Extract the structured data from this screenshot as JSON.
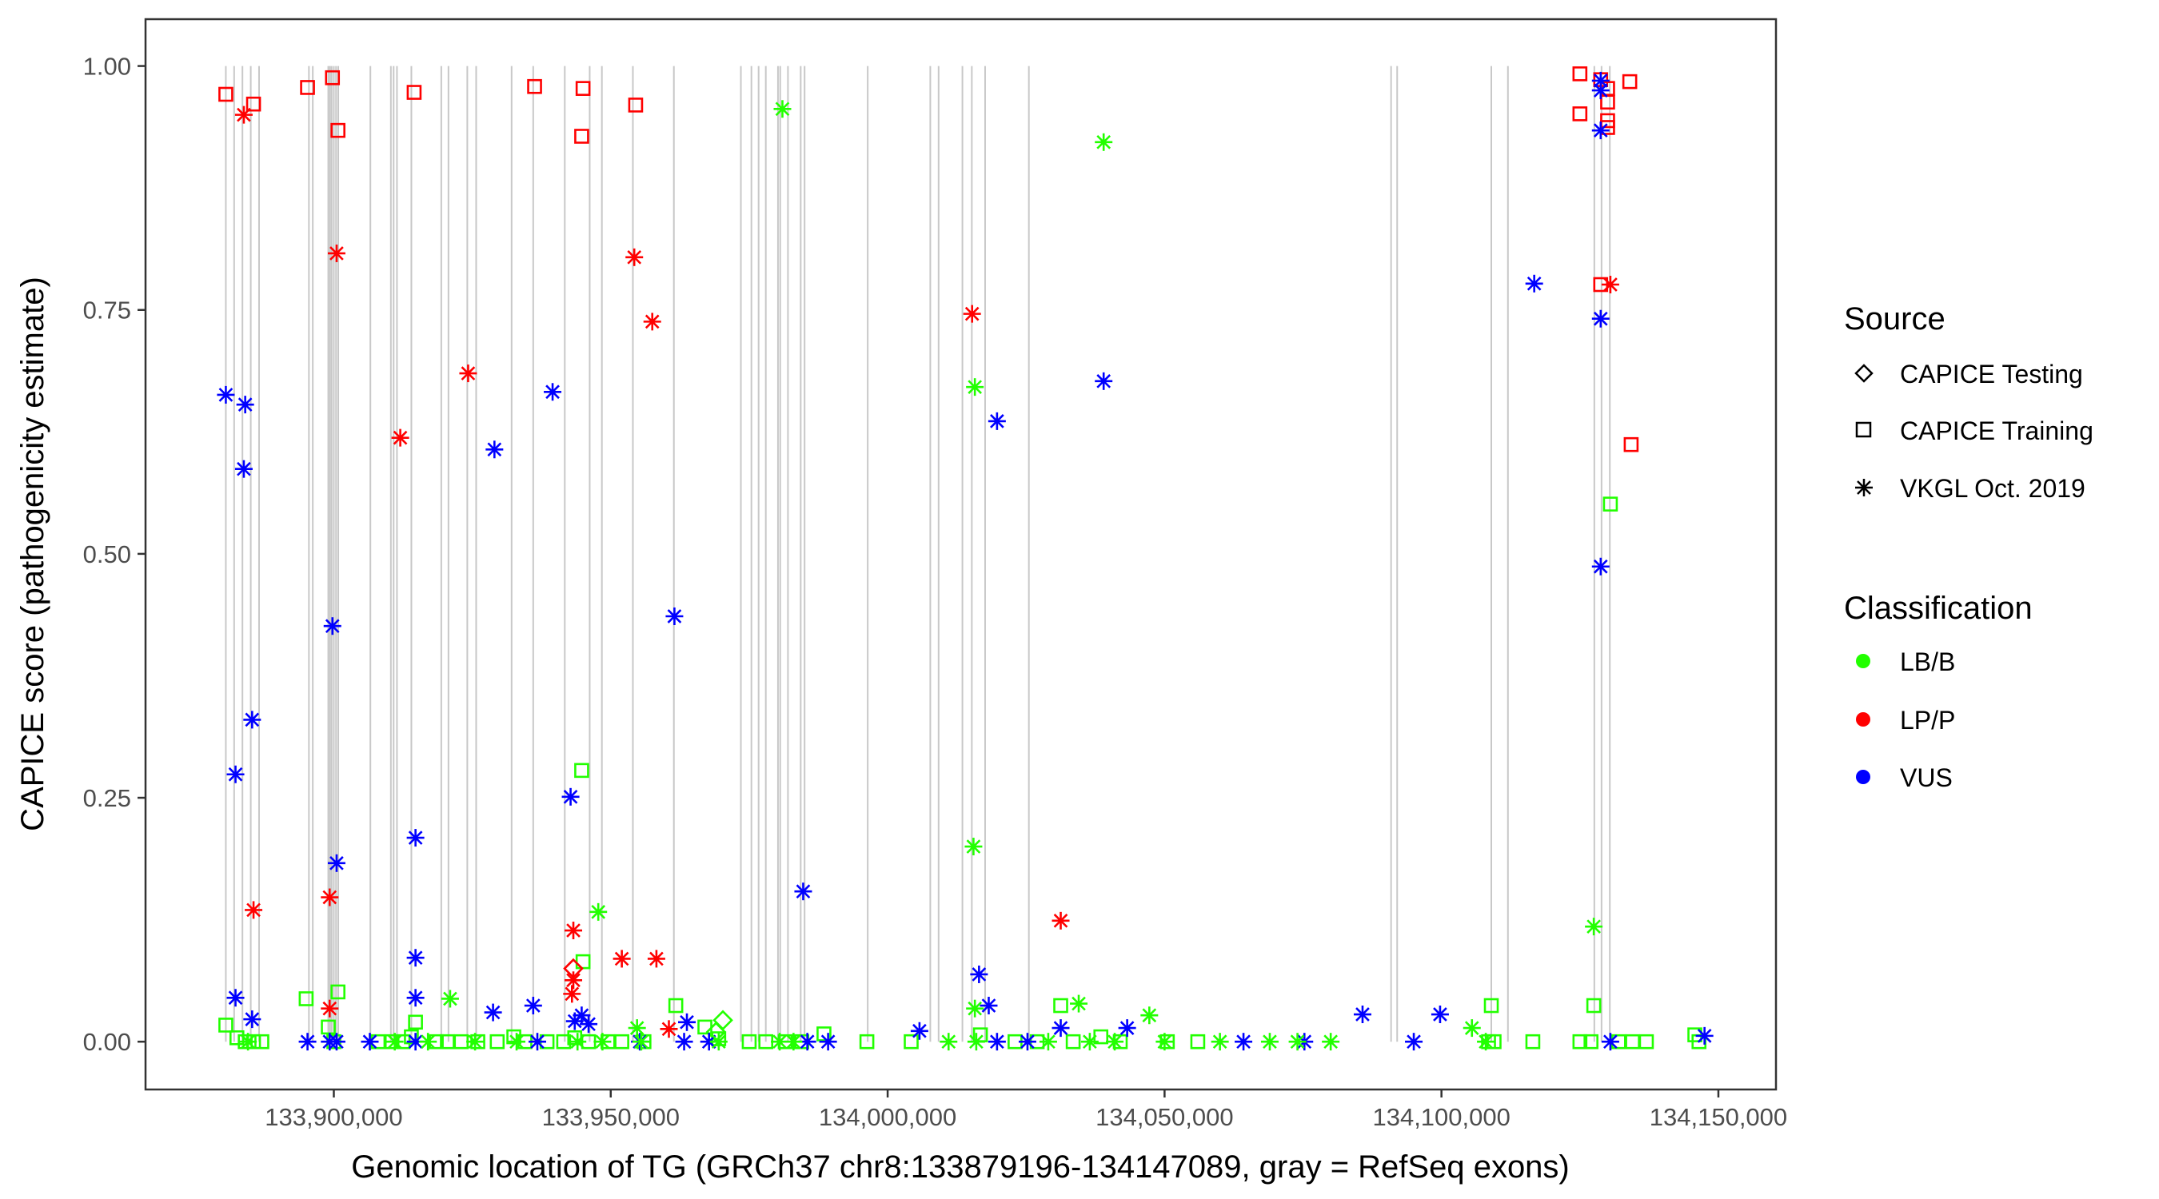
{
  "chart_data": {
    "type": "scatter",
    "title": "",
    "xlabel": "Genomic location of TG (GRCh37 chr8:133879196-134147089, gray = RefSeq exons)",
    "ylabel": "CAPICE score (pathogenicity estimate)",
    "xlim": [
      133866000,
      134160400
    ],
    "ylim": [
      -0.049,
      1.048
    ],
    "x_ticks": [
      133900000,
      133950000,
      134000000,
      134050000,
      134100000,
      134150000
    ],
    "x_tick_labels": [
      "133,900,000",
      "133,950,000",
      "134,000,000",
      "134,050,000",
      "134,100,000",
      "134,150,000"
    ],
    "y_ticks": [
      0,
      0.25,
      0.5,
      0.75,
      1.0
    ],
    "y_tick_labels": [
      "0.00",
      "0.25",
      "0.50",
      "0.75",
      "1.00"
    ],
    "grid": false,
    "exon_line_range": [
      0,
      1
    ],
    "exons": [
      133880500,
      133882000,
      133883500,
      133885000,
      133886500,
      133895500,
      133896200,
      133899000,
      133899300,
      133899600,
      133900000,
      133900400,
      133900800,
      133906600,
      133910300,
      133910800,
      133911400,
      133914000,
      133919400,
      133920700,
      133924100,
      133925700,
      133932100,
      133936000,
      133941700,
      133946200,
      133948400,
      133954000,
      133961400,
      133973500,
      133975400,
      133976700,
      133978000,
      133980200,
      133980600,
      133982000,
      133984300,
      133985000,
      133996400,
      134007700,
      134009200,
      134013500,
      134015200,
      134017600,
      134025500,
      134090900,
      134092000,
      134109000,
      134112000,
      134127600,
      134128900,
      134130400
    ],
    "legend": {
      "placement": "right",
      "source": {
        "title": "Source",
        "items": [
          {
            "label": "CAPICE Testing",
            "shape": "diamond"
          },
          {
            "label": "CAPICE Training",
            "shape": "square"
          },
          {
            "label": "VKGL Oct. 2019",
            "shape": "asterisk"
          }
        ]
      },
      "classification": {
        "title": "Classification",
        "items": [
          {
            "label": "LB/B",
            "color": "#22ff00"
          },
          {
            "label": "LP/P",
            "color": "#ff0000"
          },
          {
            "label": "VUS",
            "color": "#0000ff"
          }
        ]
      }
    },
    "colors": {
      "LB/B": "#22ff00",
      "LP/P": "#ff0000",
      "VUS": "#0000ff",
      "exon": "#c8c8c8"
    },
    "series": [
      {
        "name": "LP/P CAPICE Training",
        "classification": "LP/P",
        "source": "CAPICE Training",
        "points": [
          [
            133880500,
            0.971
          ],
          [
            133885500,
            0.961
          ],
          [
            133895250,
            0.978
          ],
          [
            133899750,
            0.988
          ],
          [
            133900750,
            0.934
          ],
          [
            133914500,
            0.973
          ],
          [
            133936250,
            0.979
          ],
          [
            133945000,
            0.977
          ],
          [
            133944750,
            0.928
          ],
          [
            133954500,
            0.96
          ],
          [
            134125000,
            0.992
          ],
          [
            134125000,
            0.951
          ],
          [
            134128750,
            0.986
          ],
          [
            134130000,
            0.977
          ],
          [
            134130000,
            0.963
          ],
          [
            134130000,
            0.944
          ],
          [
            134130000,
            0.937
          ],
          [
            134134000,
            0.984
          ],
          [
            134128750,
            0.776
          ],
          [
            134134250,
            0.612
          ]
        ]
      },
      {
        "name": "LP/P CAPICE Testing",
        "classification": "LP/P",
        "source": "CAPICE Testing",
        "points": [
          [
            133943250,
            0.075
          ]
        ]
      },
      {
        "name": "LP/P VKGL",
        "classification": "LP/P",
        "source": "VKGL Oct. 2019",
        "points": [
          [
            133883750,
            0.95
          ],
          [
            133900500,
            0.808
          ],
          [
            133954250,
            0.804
          ],
          [
            133957500,
            0.738
          ],
          [
            133924250,
            0.685
          ],
          [
            133912000,
            0.619
          ],
          [
            134015250,
            0.746
          ],
          [
            134130500,
            0.776
          ],
          [
            133885500,
            0.135
          ],
          [
            133899250,
            0.148
          ],
          [
            133899250,
            0.034
          ],
          [
            133943250,
            0.114
          ],
          [
            133943250,
            0.063
          ],
          [
            133943000,
            0.049
          ],
          [
            133952000,
            0.085
          ],
          [
            133958250,
            0.085
          ],
          [
            134031250,
            0.124
          ],
          [
            133960500,
            0.013
          ]
        ]
      },
      {
        "name": "VUS VKGL",
        "classification": "VUS",
        "source": "VKGL Oct. 2019",
        "points": [
          [
            133880500,
            0.663
          ],
          [
            133884000,
            0.653
          ],
          [
            133883750,
            0.587
          ],
          [
            133885250,
            0.33
          ],
          [
            133882250,
            0.274
          ],
          [
            133882250,
            0.045
          ],
          [
            133885250,
            0.023
          ],
          [
            133899750,
            0.426
          ],
          [
            133900500,
            0.183
          ],
          [
            133914750,
            0.209
          ],
          [
            133914750,
            0.086
          ],
          [
            133914750,
            0.045
          ],
          [
            133929000,
            0.607
          ],
          [
            133939500,
            0.666
          ],
          [
            133928750,
            0.03
          ],
          [
            133936000,
            0.037
          ],
          [
            133942750,
            0.251
          ],
          [
            133944750,
            0.027
          ],
          [
            133943500,
            0.021
          ],
          [
            133946000,
            0.018
          ],
          [
            133961500,
            0.436
          ],
          [
            133963750,
            0.02
          ],
          [
            133984750,
            0.154
          ],
          [
            134016500,
            0.069
          ],
          [
            134019750,
            0.636
          ],
          [
            134018250,
            0.037
          ],
          [
            134039000,
            0.677
          ],
          [
            134043250,
            0.014
          ],
          [
            134005750,
            0.011
          ],
          [
            134031250,
            0.014
          ],
          [
            134085750,
            0.028
          ],
          [
            134099750,
            0.028
          ],
          [
            134116750,
            0.777
          ],
          [
            134128750,
            0.985
          ],
          [
            134128750,
            0.975
          ],
          [
            134128750,
            0.934
          ],
          [
            134128750,
            0.741
          ],
          [
            134128750,
            0.487
          ],
          [
            134147500,
            0.006
          ],
          [
            133895250,
            0
          ],
          [
            133899250,
            0
          ],
          [
            133900500,
            0
          ],
          [
            133906500,
            0
          ],
          [
            133914750,
            0
          ],
          [
            133936750,
            0
          ],
          [
            133955250,
            0
          ],
          [
            133963250,
            0
          ],
          [
            133967750,
            0
          ],
          [
            133985500,
            0
          ],
          [
            133989250,
            0
          ],
          [
            134019750,
            0
          ],
          [
            134025250,
            0
          ],
          [
            134064250,
            0
          ],
          [
            134075250,
            0
          ],
          [
            134095000,
            0
          ],
          [
            134130500,
            0
          ]
        ]
      },
      {
        "name": "LB/B VKGL",
        "classification": "LB/B",
        "source": "VKGL Oct. 2019",
        "points": [
          [
            133981000,
            0.956
          ],
          [
            134039000,
            0.922
          ],
          [
            134015750,
            0.671
          ],
          [
            134015500,
            0.2
          ],
          [
            134127500,
            0.118
          ],
          [
            133947750,
            0.133
          ],
          [
            133921000,
            0.044
          ],
          [
            134015750,
            0.034
          ],
          [
            134034500,
            0.039
          ],
          [
            134047250,
            0.027
          ],
          [
            134105500,
            0.014
          ],
          [
            133954750,
            0.014
          ],
          [
            133884500,
            0
          ],
          [
            133911000,
            0
          ],
          [
            133917000,
            0
          ],
          [
            133925500,
            0
          ],
          [
            133933000,
            0
          ],
          [
            133944000,
            0
          ],
          [
            133948500,
            0
          ],
          [
            133955500,
            0
          ],
          [
            133969500,
            0
          ],
          [
            133980500,
            0
          ],
          [
            133983000,
            0
          ],
          [
            134011000,
            0
          ],
          [
            134016000,
            0
          ],
          [
            134029000,
            0
          ],
          [
            134036500,
            0
          ],
          [
            134041000,
            0
          ],
          [
            134050000,
            0
          ],
          [
            134060000,
            0
          ],
          [
            134069000,
            0
          ],
          [
            134074000,
            0
          ],
          [
            134080000,
            0
          ],
          [
            134108000,
            0
          ]
        ]
      },
      {
        "name": "LB/B CAPICE Training",
        "classification": "LB/B",
        "source": "CAPICE Training",
        "points": [
          [
            133880500,
            0.017
          ],
          [
            133944750,
            0.278
          ],
          [
            133945000,
            0.082
          ],
          [
            133895000,
            0.044
          ],
          [
            133900750,
            0.051
          ],
          [
            133914750,
            0.02
          ],
          [
            133961750,
            0.037
          ],
          [
            134031250,
            0.037
          ],
          [
            134109000,
            0.037
          ],
          [
            134127500,
            0.037
          ],
          [
            134130500,
            0.551
          ],
          [
            134145750,
            0.007
          ],
          [
            133882500,
            0.004
          ],
          [
            133884000,
            0
          ],
          [
            133885500,
            0
          ],
          [
            133887000,
            0
          ],
          [
            133899000,
            0.015
          ],
          [
            133900000,
            0
          ],
          [
            133908000,
            0
          ],
          [
            133910500,
            0
          ],
          [
            133912500,
            0
          ],
          [
            133914000,
            0.005
          ],
          [
            133918500,
            0
          ],
          [
            133920500,
            0
          ],
          [
            133923000,
            0
          ],
          [
            133926000,
            0
          ],
          [
            133929500,
            0
          ],
          [
            133932500,
            0.005
          ],
          [
            133934500,
            0
          ],
          [
            133938500,
            0
          ],
          [
            133941500,
            0
          ],
          [
            133943500,
            0.004
          ],
          [
            133946000,
            0
          ],
          [
            133949500,
            0
          ],
          [
            133952000,
            0
          ],
          [
            133956000,
            0
          ],
          [
            133967000,
            0.015
          ],
          [
            133969500,
            0.003
          ],
          [
            133975000,
            0
          ],
          [
            133978000,
            0
          ],
          [
            133981500,
            0
          ],
          [
            133984500,
            0
          ],
          [
            133988500,
            0.008
          ],
          [
            133996250,
            0
          ],
          [
            134004250,
            0
          ],
          [
            134016750,
            0.007
          ],
          [
            134023000,
            0
          ],
          [
            134027000,
            0
          ],
          [
            134033500,
            0
          ],
          [
            134038500,
            0.005
          ],
          [
            134042000,
            0
          ],
          [
            134050500,
            0
          ],
          [
            134056000,
            0
          ],
          [
            134108500,
            0
          ],
          [
            134109500,
            0
          ],
          [
            134116500,
            0
          ],
          [
            134125000,
            0
          ],
          [
            134127000,
            0
          ],
          [
            134132000,
            0
          ],
          [
            134134500,
            0
          ],
          [
            134137000,
            0
          ],
          [
            134146500,
            0
          ]
        ]
      },
      {
        "name": "LB/B CAPICE Testing",
        "classification": "LB/B",
        "source": "CAPICE Testing",
        "points": [
          [
            133970250,
            0.022
          ],
          [
            133969000,
            0.01
          ]
        ]
      }
    ]
  }
}
